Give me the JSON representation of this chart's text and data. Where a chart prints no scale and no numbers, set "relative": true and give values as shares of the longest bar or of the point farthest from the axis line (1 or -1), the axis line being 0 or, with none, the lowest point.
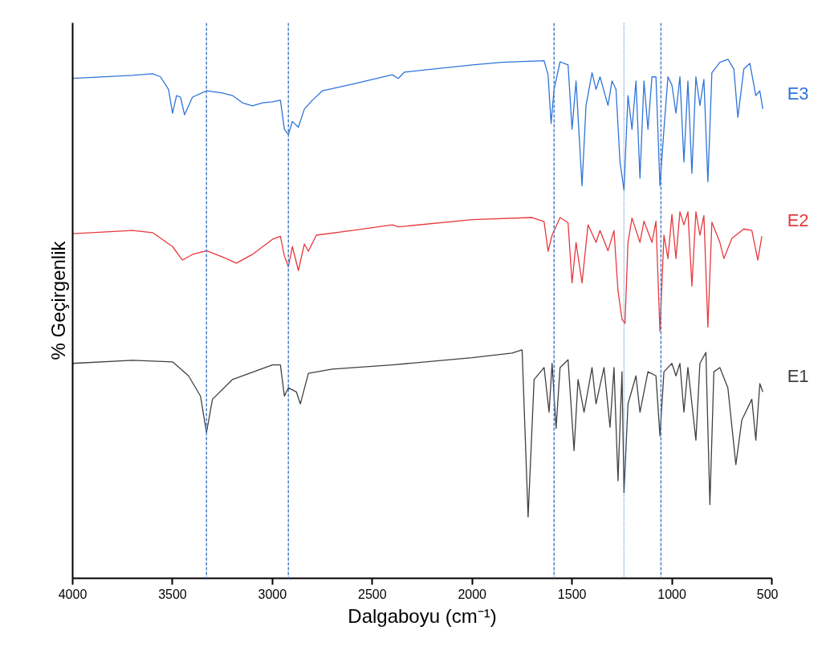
{
  "chart_data": {
    "type": "line",
    "relative": true,
    "xlabel": "Dalgaboyu (cm⁻¹)",
    "ylabel": "% Geçirgenlik",
    "xlim": [
      4000,
      500
    ],
    "xticks": [
      4000,
      3500,
      3000,
      2500,
      2000,
      1500,
      1000,
      500
    ],
    "tick_labels": "x",
    "grid": false,
    "legend": false,
    "line_style": "solid",
    "marker": "none",
    "x": [
      4000,
      3700,
      3600,
      3560,
      3520,
      3500,
      3480,
      3460,
      3440,
      3400,
      3330,
      3250,
      3200,
      3150,
      3100,
      3050,
      3000,
      2960,
      2940,
      2920,
      2900,
      2870,
      2840,
      2800,
      2750,
      2600,
      2400,
      2370,
      2340,
      2000,
      1850,
      1640,
      1620,
      1605,
      1590,
      1560,
      1520,
      1500,
      1480,
      1450,
      1430,
      1400,
      1380,
      1360,
      1320,
      1300,
      1280,
      1260,
      1240,
      1220,
      1200,
      1180,
      1160,
      1140,
      1120,
      1100,
      1080,
      1060,
      1040,
      1020,
      1000,
      980,
      960,
      940,
      920,
      900,
      880,
      860,
      840,
      820,
      800,
      760,
      720,
      690,
      670,
      640,
      610,
      580,
      560,
      545
    ],
    "series": [
      {
        "name": "E3",
        "color": "#2f74d9",
        "values": [
          0.963,
          0.969,
          0.972,
          0.966,
          0.942,
          0.896,
          0.93,
          0.927,
          0.893,
          0.927,
          0.939,
          0.935,
          0.93,
          0.916,
          0.91,
          0.916,
          0.918,
          0.921,
          0.865,
          0.855,
          0.88,
          0.869,
          0.904,
          0.921,
          0.939,
          0.952,
          0.97,
          0.963,
          0.975,
          0.989,
          0.994,
          0.997,
          0.97,
          0.876,
          0.942,
          0.995,
          0.989,
          0.865,
          0.958,
          0.756,
          0.911,
          0.974,
          0.942,
          0.966,
          0.911,
          0.958,
          0.942,
          0.802,
          0.748,
          0.93,
          0.865,
          0.958,
          0.771,
          0.958,
          0.865,
          0.966,
          0.966,
          0.756,
          0.865,
          0.966,
          0.95,
          0.896,
          0.966,
          0.802,
          0.958,
          0.78,
          0.966,
          0.911,
          0.961,
          0.764,
          0.974,
          0.994,
          1.0,
          0.981,
          0.888,
          0.981,
          0.992,
          0.93,
          0.939,
          0.904
        ]
      },
      {
        "name": "E2",
        "color": "#e8383d",
        "x": [
          4000,
          3700,
          3600,
          3500,
          3450,
          3400,
          3330,
          3250,
          3180,
          3100,
          3000,
          2960,
          2940,
          2920,
          2900,
          2870,
          2840,
          2820,
          2780,
          2600,
          2400,
          2370,
          2000,
          1700,
          1640,
          1620,
          1600,
          1560,
          1520,
          1500,
          1480,
          1450,
          1420,
          1380,
          1360,
          1320,
          1290,
          1270,
          1250,
          1235,
          1220,
          1200,
          1160,
          1140,
          1100,
          1080,
          1060,
          1040,
          1020,
          1000,
          980,
          960,
          940,
          920,
          900,
          880,
          860,
          840,
          820,
          800,
          760,
          740,
          700,
          640,
          600,
          570,
          550
        ],
        "values": [
          0.664,
          0.67,
          0.666,
          0.639,
          0.613,
          0.624,
          0.631,
          0.619,
          0.607,
          0.624,
          0.653,
          0.659,
          0.621,
          0.6,
          0.639,
          0.593,
          0.644,
          0.63,
          0.661,
          0.67,
          0.681,
          0.677,
          0.691,
          0.695,
          0.687,
          0.63,
          0.661,
          0.695,
          0.685,
          0.569,
          0.647,
          0.569,
          0.681,
          0.647,
          0.67,
          0.631,
          0.67,
          0.554,
          0.499,
          0.491,
          0.647,
          0.694,
          0.647,
          0.688,
          0.647,
          0.688,
          0.476,
          0.661,
          0.616,
          0.701,
          0.616,
          0.706,
          0.681,
          0.706,
          0.563,
          0.706,
          0.661,
          0.699,
          0.484,
          0.686,
          0.647,
          0.616,
          0.655,
          0.673,
          0.67,
          0.613,
          0.659
        ]
      },
      {
        "name": "E1",
        "color": "#404040",
        "x": [
          4000,
          3700,
          3500,
          3420,
          3360,
          3330,
          3300,
          3200,
          3000,
          2960,
          2940,
          2920,
          2880,
          2860,
          2820,
          2700,
          2400,
          2000,
          1800,
          1750,
          1720,
          1690,
          1640,
          1615,
          1600,
          1580,
          1560,
          1520,
          1490,
          1470,
          1440,
          1400,
          1380,
          1340,
          1310,
          1290,
          1270,
          1250,
          1240,
          1220,
          1180,
          1160,
          1120,
          1080,
          1060,
          1040,
          1000,
          980,
          960,
          940,
          920,
          880,
          860,
          830,
          810,
          790,
          760,
          720,
          680,
          650,
          600,
          580,
          560,
          545
        ],
        "values": [
          0.414,
          0.42,
          0.417,
          0.39,
          0.351,
          0.281,
          0.345,
          0.383,
          0.411,
          0.411,
          0.351,
          0.367,
          0.359,
          0.336,
          0.395,
          0.403,
          0.411,
          0.425,
          0.434,
          0.44,
          0.118,
          0.383,
          0.406,
          0.32,
          0.414,
          0.289,
          0.406,
          0.421,
          0.246,
          0.383,
          0.32,
          0.406,
          0.336,
          0.406,
          0.291,
          0.406,
          0.188,
          0.398,
          0.165,
          0.336,
          0.39,
          0.32,
          0.398,
          0.39,
          0.274,
          0.398,
          0.414,
          0.39,
          0.414,
          0.32,
          0.406,
          0.266,
          0.414,
          0.435,
          0.142,
          0.398,
          0.406,
          0.367,
          0.219,
          0.305,
          0.345,
          0.266,
          0.375,
          0.359
        ]
      }
    ],
    "ref_lines": [
      {
        "axis": "x",
        "value": 3330,
        "color": "#4a7fc9",
        "line_style": "dashed"
      },
      {
        "axis": "x",
        "value": 2920,
        "color": "#4a7fc9",
        "line_style": "dashed"
      },
      {
        "axis": "x",
        "value": 1590,
        "color": "#4a7fc9",
        "line_style": "dashed"
      },
      {
        "axis": "x",
        "value": 1240,
        "color": "#4a7fc9",
        "line_style": "dotted"
      },
      {
        "axis": "x",
        "value": 1055,
        "color": "#4a7fc9",
        "line_style": "dashed"
      }
    ]
  }
}
